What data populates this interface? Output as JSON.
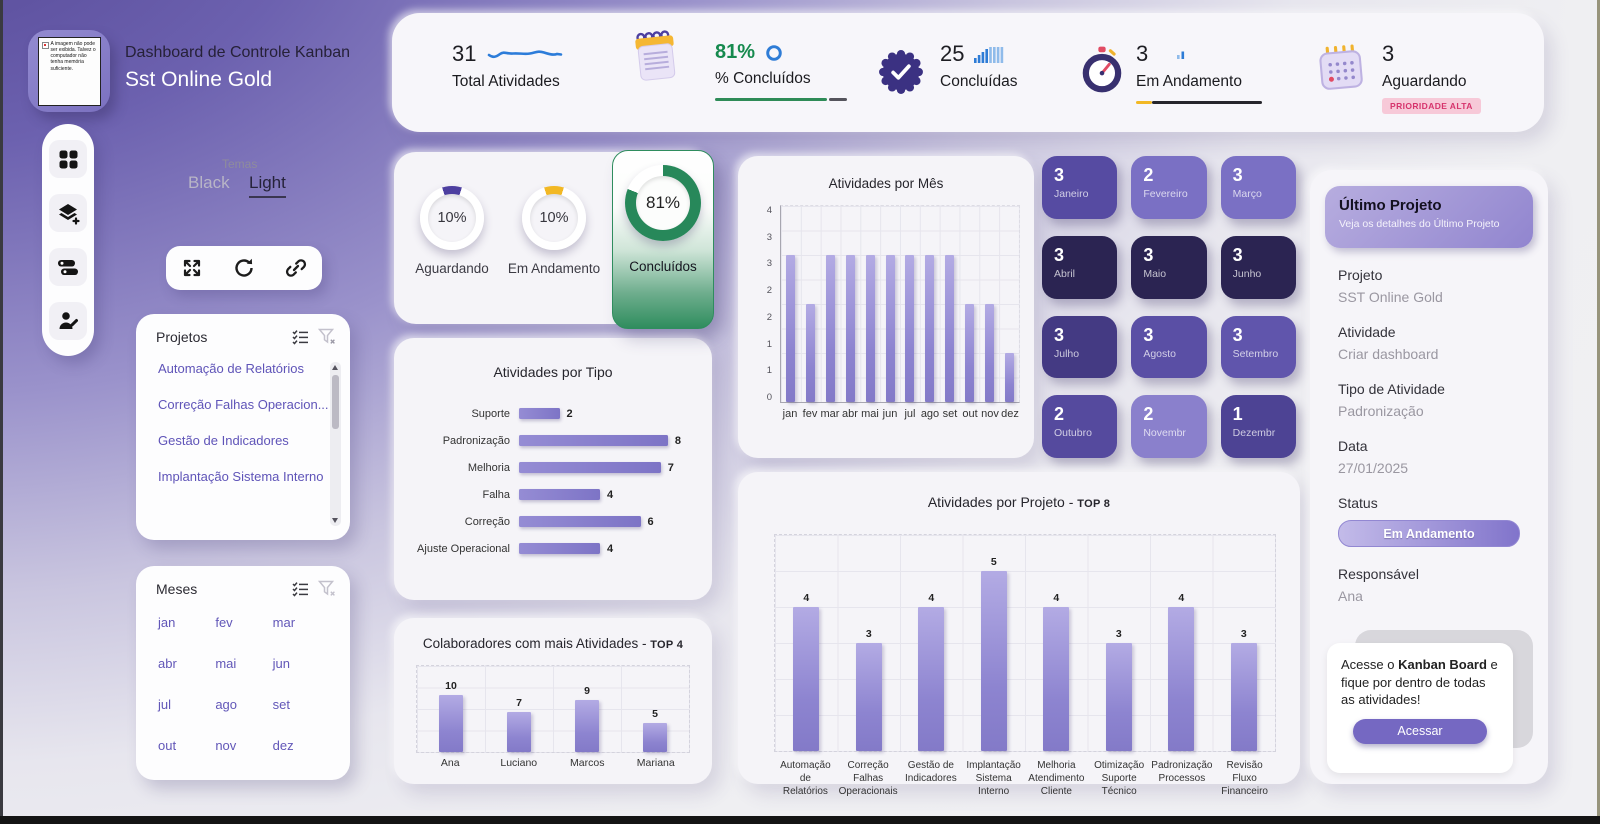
{
  "header": {
    "title": "Dashboard de Controle Kanban",
    "subtitle": "Sst Online Gold",
    "logo_broken_text": "A imagem não pode ser exibida. Talvez o computador não tenha memória suficiente."
  },
  "themes": {
    "label": "Temas",
    "options": [
      "Black",
      "Light"
    ],
    "active": "Light"
  },
  "kpi_bar": {
    "total": {
      "value": "31",
      "label": "Total Atividades"
    },
    "pct": {
      "value": "81%",
      "label": "% Concluídos"
    },
    "done": {
      "value": "25",
      "label": "Concluídas"
    },
    "progress": {
      "value": "3",
      "label": "Em Andamento"
    },
    "waiting": {
      "value": "3",
      "label": "Aguardando",
      "badge": "PRIORIDADE ALTA"
    }
  },
  "icons": {
    "kpi": [
      "sparkline-icon",
      "notes-icon",
      "circle-icon",
      "verified-badge-icon",
      "bars-icon",
      "stopwatch-icon",
      "mini-bars-icon",
      "calendar-icon"
    ],
    "sidebar": [
      "apps-grid-icon",
      "layers-add-icon",
      "rows-icon",
      "user-edit-icon"
    ],
    "toolbar": [
      "expand-icon",
      "refresh-icon",
      "link-icon"
    ],
    "panels": [
      "checklist-icon",
      "filter-clear-icon"
    ]
  },
  "colors": {
    "accent": "#7568c2",
    "green": "#2e8b57",
    "yellow": "#f2b824",
    "purple_dark": "#4d3fa0",
    "bar_purple": "#8d84d0",
    "pink_badge_bg": "#f7c9d8",
    "pink_badge_text": "#d6336c",
    "blue_icon": "#2e7cd6"
  },
  "gauges": [
    {
      "percent": 10,
      "value_label": "10%",
      "label": "Aguardando",
      "color": "#4d3fa0"
    },
    {
      "percent": 10,
      "value_label": "10%",
      "label": "Em Andamento",
      "color": "#f2b824"
    },
    {
      "percent": 81,
      "value_label": "81%",
      "label": "Concluídos",
      "color": "#27885a"
    }
  ],
  "projects_panel": {
    "title": "Projetos",
    "items": [
      "Automação de Relatórios",
      "Correção Falhas Operacion...",
      "Gestão de Indicadores",
      "Implantação Sistema Interno"
    ]
  },
  "months_panel": {
    "title": "Meses",
    "items": [
      "jan",
      "fev",
      "mar",
      "abr",
      "mai",
      "jun",
      "jul",
      "ago",
      "set",
      "out",
      "nov",
      "dez"
    ]
  },
  "month_tiles": [
    {
      "value": "3",
      "label": "Janeiro",
      "color": "#564ba2"
    },
    {
      "value": "2",
      "label": "Fevereiro",
      "color": "#7a70c4"
    },
    {
      "value": "3",
      "label": "Março",
      "color": "#7a70c4"
    },
    {
      "value": "3",
      "label": "Abril",
      "color": "#2b2452"
    },
    {
      "value": "3",
      "label": "Maio",
      "color": "#2b2452"
    },
    {
      "value": "3",
      "label": "Junho",
      "color": "#2b2452"
    },
    {
      "value": "3",
      "label": "Julho",
      "color": "#443a83"
    },
    {
      "value": "3",
      "label": "Agosto",
      "color": "#5a4fa5"
    },
    {
      "value": "3",
      "label": "Setembro",
      "color": "#6055ac"
    },
    {
      "value": "2",
      "label": "Outubro",
      "color": "#554a9e"
    },
    {
      "value": "2",
      "label": "Novembr",
      "color": "#8a80cc"
    },
    {
      "value": "1",
      "label": "Dezembr",
      "color": "#4d4394"
    }
  ],
  "chart_data": [
    {
      "id": "atividades_por_mes",
      "type": "bar",
      "title": "Atividades por Mês",
      "categories": [
        "jan",
        "fev",
        "mar",
        "abr",
        "mai",
        "jun",
        "jul",
        "ago",
        "set",
        "out",
        "nov",
        "dez"
      ],
      "values": [
        3,
        2,
        3,
        3,
        3,
        3,
        3,
        3,
        3,
        2,
        2,
        1
      ],
      "ylim": [
        0,
        4
      ],
      "ytick_labels": [
        "4",
        "3",
        "3",
        "2",
        "2",
        "1",
        "1",
        "0"
      ],
      "grid": true,
      "legend": false
    },
    {
      "id": "atividades_por_tipo",
      "type": "bar_horizontal",
      "title": "Atividades por Tipo",
      "categories": [
        "Suporte",
        "Padronização",
        "Melhoria",
        "Falha",
        "Correção",
        "Ajuste Operacional"
      ],
      "values": [
        2,
        8,
        7,
        4,
        6,
        4
      ],
      "xlim": [
        0,
        8
      ],
      "grid": false,
      "legend": false
    },
    {
      "id": "colaboradores_top4",
      "type": "bar",
      "title": "Colaboradores com mais Atividades -",
      "title_suffix": "TOP 4",
      "categories": [
        "Ana",
        "Luciano",
        "Marcos",
        "Mariana"
      ],
      "values": [
        10,
        7,
        9,
        5
      ],
      "ylim": [
        0,
        15
      ],
      "grid": true,
      "legend": false
    },
    {
      "id": "atividades_por_projeto_top8",
      "type": "bar",
      "title": "Atividades por Projeto -",
      "title_suffix": "TOP 8",
      "categories_multiline": [
        [
          "Automação de",
          "Relatórios"
        ],
        [
          "Correção",
          "Falhas",
          "Operacionais"
        ],
        [
          "Gestão de",
          "Indicadores"
        ],
        [
          "Implantação",
          "Sistema",
          "Interno"
        ],
        [
          "Melhoria",
          "Atendimento",
          "Cliente"
        ],
        [
          "Otimização",
          "Suporte",
          "Técnico"
        ],
        [
          "Padronização",
          "Processos"
        ],
        [
          "Revisão Fluxo",
          "Financeiro"
        ]
      ],
      "values": [
        4,
        3,
        4,
        5,
        4,
        3,
        4,
        3
      ],
      "ylim": [
        0,
        6
      ],
      "grid": true,
      "legend": false
    }
  ],
  "last_project": {
    "header": "Último Projeto",
    "subheader": "Veja os detalhes do Último Projeto",
    "fields": [
      {
        "label": "Projeto",
        "value": "SST Online Gold"
      },
      {
        "label": "Atividade",
        "value": "Criar dashboard"
      },
      {
        "label": "Tipo de Atividade",
        "value": "Padronização"
      },
      {
        "label": "Data",
        "value": "27/01/2025"
      }
    ],
    "status_label": "Status",
    "status_value": "Em Andamento",
    "resp_label": "Responsável",
    "resp_value": "Ana",
    "promo": {
      "text_pre": "Acesse o ",
      "text_bold": "Kanban Board",
      "text_post": " e fique por dentro de todas as atividades!",
      "button": "Acessar"
    }
  }
}
